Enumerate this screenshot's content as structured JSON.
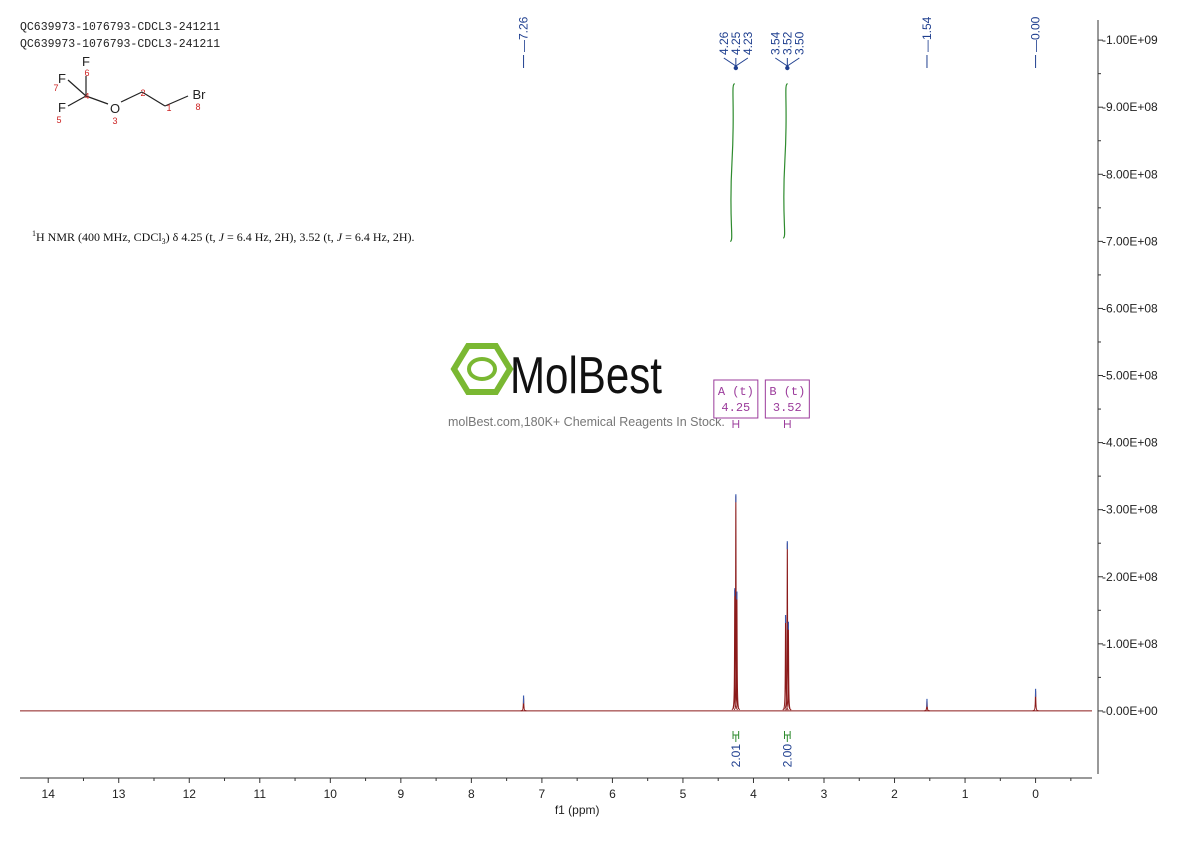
{
  "header": {
    "sample_line1": "QC639973-1076793-CDCL3-241211",
    "sample_line2": "QC639973-1076793-CDCL3-241211"
  },
  "structure": {
    "atoms": {
      "f6": "F",
      "f7": "F",
      "f5": "F",
      "o3": "O",
      "br8": "Br"
    },
    "numbers": {
      "n6": "6",
      "n7": "7",
      "n4": "4",
      "n5": "5",
      "n3": "3",
      "n2": "2",
      "n1": "1",
      "n8": "8"
    },
    "colors": {
      "bond": "#222222",
      "number": "#cc2222"
    }
  },
  "nmr_text": {
    "sup": "1",
    "part1": "H NMR (400 MHz, CDCl",
    "sub": "3",
    "part2": ") δ 4.25 (t, ",
    "j1": "J",
    "part3": " = 6.4 Hz, 2H), 3.52 (t, ",
    "j2": "J",
    "part4": " = 6.4 Hz, 2H)."
  },
  "watermark": {
    "brand": "MolBest",
    "tagline": "molBest.com,180K+ Chemical Reagents In Stock.",
    "color": "#7ab832"
  },
  "chart_data": {
    "type": "line",
    "xlabel": "f1 (ppm)",
    "x_reversed": true,
    "xlim": [
      14.4,
      -0.8
    ],
    "x_ticks": [
      14,
      13,
      12,
      11,
      10,
      9,
      8,
      7,
      6,
      5,
      4,
      3,
      2,
      1,
      0
    ],
    "ylim": [
      -100000000.0,
      1030000000.0
    ],
    "y_ticks": [
      {
        "value": 0,
        "label": "0.00E+00"
      },
      {
        "value": 100000000,
        "label": "1.00E+08"
      },
      {
        "value": 200000000,
        "label": "2.00E+08"
      },
      {
        "value": 300000000,
        "label": "3.00E+08"
      },
      {
        "value": 400000000,
        "label": "4.00E+08"
      },
      {
        "value": 500000000,
        "label": "5.00E+08"
      },
      {
        "value": 600000000,
        "label": "6.00E+08"
      },
      {
        "value": 700000000,
        "label": "7.00E+08"
      },
      {
        "value": 800000000,
        "label": "8.00E+08"
      },
      {
        "value": 900000000,
        "label": "9.00E+08"
      },
      {
        "value": 1000000000,
        "label": "1.00E+09"
      }
    ],
    "spectrum_color": "#8b1a1a",
    "peaks": [
      {
        "ppm": 7.26,
        "height": 20000000
      },
      {
        "ppm": 4.265,
        "height": 180000000
      },
      {
        "ppm": 4.25,
        "height": 320000000
      },
      {
        "ppm": 4.235,
        "height": 175000000
      },
      {
        "ppm": 3.545,
        "height": 140000000
      },
      {
        "ppm": 3.52,
        "height": 250000000
      },
      {
        "ppm": 3.505,
        "height": 130000000
      },
      {
        "ppm": 1.54,
        "height": 15000000
      },
      {
        "ppm": 0.0,
        "height": 30000000
      }
    ],
    "peak_labels": [
      {
        "ppm": 7.26,
        "label": "7.26"
      },
      {
        "ppm": 4.26,
        "label": "4.26"
      },
      {
        "ppm": 4.25,
        "label": "4.25"
      },
      {
        "ppm": 4.23,
        "label": "4.23"
      },
      {
        "ppm": 3.54,
        "label": "3.54"
      },
      {
        "ppm": 3.52,
        "label": "3.52"
      },
      {
        "ppm": 3.5,
        "label": "3.50"
      },
      {
        "ppm": 1.54,
        "label": "1.54"
      },
      {
        "ppm": 0.0,
        "label": "0.00"
      }
    ],
    "peak_label_color": "#1f3f8f",
    "multiplets": [
      {
        "label": "A (t)",
        "value": "4.25",
        "ppm": 4.25,
        "range": [
          4.21,
          4.29
        ]
      },
      {
        "label": "B (t)",
        "value": "3.52",
        "ppm": 3.52,
        "range": [
          3.48,
          3.56
        ]
      }
    ],
    "multiplet_color": "#9b3b9b",
    "integrals": [
      {
        "value": "2.01",
        "ppm": 4.25,
        "range": [
          4.21,
          4.29
        ],
        "curve_x": [
          4.33,
          4.28
        ],
        "curve_y": [
          700000000.0,
          935000000.0
        ]
      },
      {
        "value": "2.00",
        "ppm": 3.52,
        "range": [
          3.48,
          3.56
        ],
        "curve_x": [
          3.58,
          3.53
        ],
        "curve_y": [
          705000000.0,
          935000000.0
        ]
      }
    ],
    "integral_color": "#2e8b2e"
  }
}
